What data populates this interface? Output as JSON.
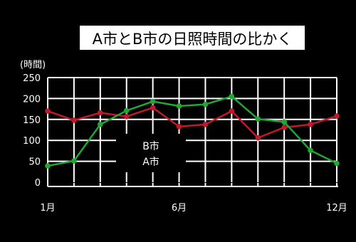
{
  "chart_data": {
    "type": "line",
    "title": "A市とB市の日照時間の比かく",
    "ylabel": "(時間)",
    "xlabel": "",
    "ylim": [
      0,
      250
    ],
    "y_ticks": [
      "0",
      "50",
      "100",
      "150",
      "200",
      "250"
    ],
    "x": [
      1,
      2,
      3,
      4,
      5,
      6,
      7,
      8,
      9,
      10,
      11,
      12
    ],
    "x_ticks": [
      {
        "x": 1,
        "label": "1月"
      },
      {
        "x": 6,
        "label": "6月"
      },
      {
        "x": 12,
        "label": "12月"
      }
    ],
    "grid": true,
    "legend": [
      "B市",
      "A市"
    ],
    "series": [
      {
        "name": "B市",
        "color": "#c0192b",
        "values": [
          170,
          148,
          166,
          157,
          178,
          133,
          138,
          170,
          106,
          131,
          138,
          158
        ]
      },
      {
        "name": "A市",
        "color": "#22a832",
        "values": [
          39,
          51,
          138,
          171,
          193,
          182,
          186,
          205,
          151,
          144,
          76,
          45
        ]
      }
    ]
  }
}
